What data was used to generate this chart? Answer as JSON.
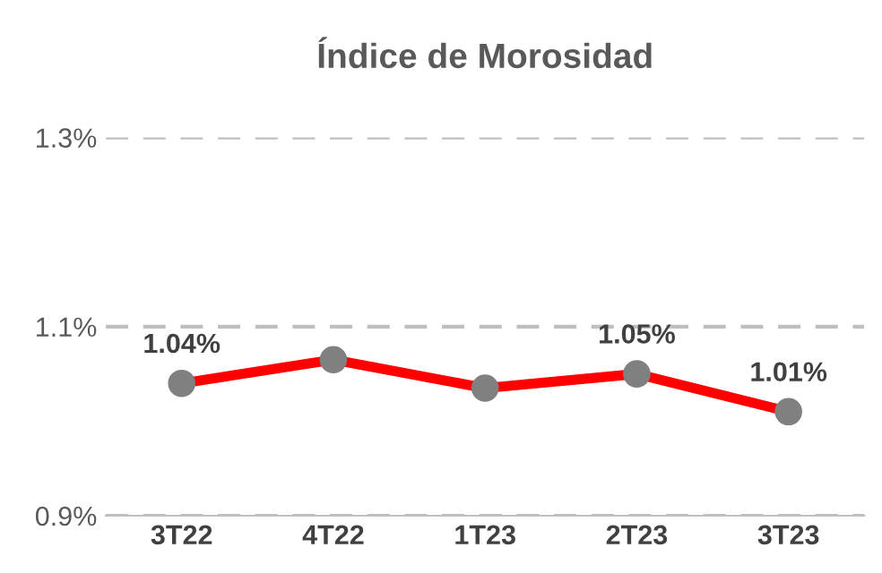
{
  "chart_data": {
    "type": "line",
    "title": "Índice de Morosidad",
    "categories": [
      "3T22",
      "4T22",
      "1T23",
      "2T23",
      "3T23"
    ],
    "series": [
      {
        "color": "#ff0000",
        "values": [
          1.04,
          1.065,
          1.035,
          1.05,
          1.01
        ],
        "value_labels": [
          "1.04%",
          null,
          null,
          "1.05%",
          "1.01%"
        ]
      }
    ],
    "ylim": [
      0.9,
      1.3
    ],
    "yticks": [
      {
        "value": 0.9,
        "label": "0.9%"
      },
      {
        "value": 1.1,
        "label": "1.1%"
      },
      {
        "value": 1.3,
        "label": "1.3%"
      }
    ],
    "grid": "y",
    "marker": "circle",
    "line_style": "solid"
  }
}
